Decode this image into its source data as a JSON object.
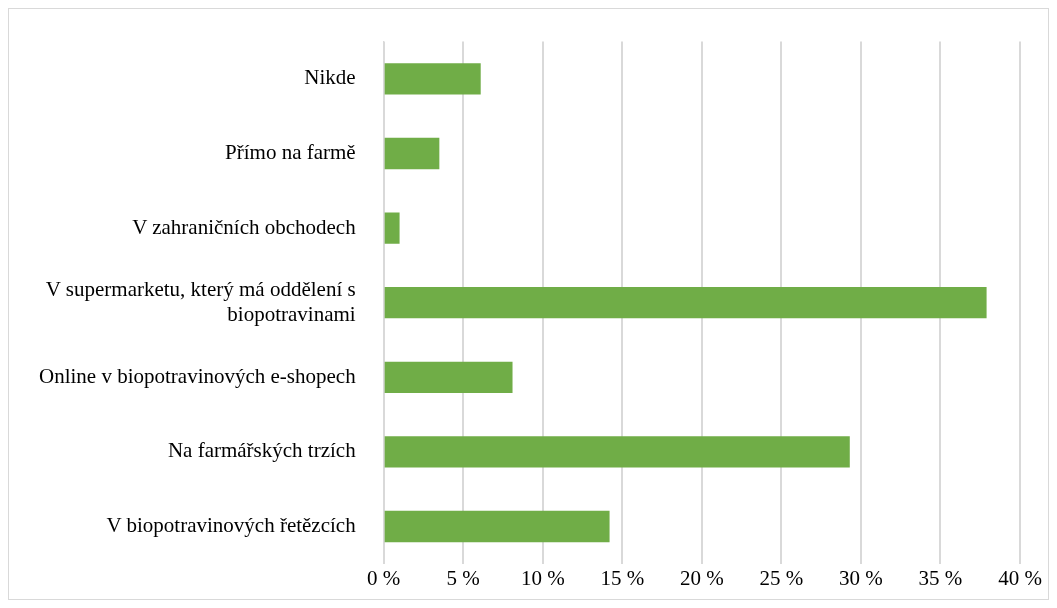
{
  "chart_data": {
    "type": "bar",
    "orientation": "horizontal",
    "categories": [
      "Nikde",
      "Přímo na farmě",
      "V zahraničních obchodech",
      "V supermarketu, který má oddělení s biopotravinami",
      "Online v biopotravinových e-shopech",
      "Na farmářských trzích",
      "V biopotravinových řetězcích"
    ],
    "values": [
      6.1,
      3.5,
      1,
      37.9,
      8.1,
      29.3,
      14.2
    ],
    "color": "#70ad47",
    "xlim": [
      0,
      40
    ],
    "xticks": [
      {
        "value": 0,
        "label": "0 %"
      },
      {
        "value": 5,
        "label": "5 %"
      },
      {
        "value": 10,
        "label": "10 %"
      },
      {
        "value": 15,
        "label": "15 %"
      },
      {
        "value": 20,
        "label": "20 %"
      },
      {
        "value": 25,
        "label": "25 %"
      },
      {
        "value": 30,
        "label": "30 %"
      },
      {
        "value": 35,
        "label": "35 %"
      },
      {
        "value": 40,
        "label": "40 %"
      }
    ],
    "grid": "x",
    "legend": false
  }
}
